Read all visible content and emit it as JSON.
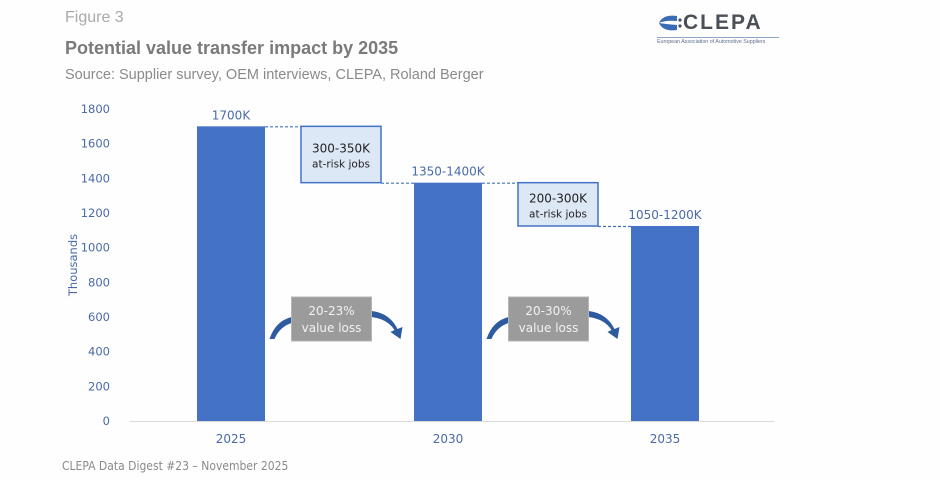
{
  "header": {
    "figure_label": "Figure 3",
    "title": "Potential value transfer impact by 2035",
    "source": "Source: Supplier survey, OEM interviews, CLEPA, Roland Berger"
  },
  "logo": {
    "name": "CLEPA",
    "tagline": "European Association of Automotive Suppliers",
    "icon": "clepa-swoosh-icon"
  },
  "footer": "CLEPA Data Digest #23 – November 2025",
  "colors": {
    "bar": "#4472c4",
    "axis_text": "#4a6aa8",
    "callout_fill": "#dde8f6",
    "callout_border": "#4472c4",
    "loss_box_fill": "#9b9b9b",
    "arrow": "#2e5aa0"
  },
  "chart_data": {
    "type": "bar",
    "title": "Potential value transfer impact by 2035",
    "xlabel": "",
    "ylabel": "Thousands",
    "categories": [
      "2025",
      "2030",
      "2035"
    ],
    "values": [
      1700,
      1375,
      1125
    ],
    "value_ranges": [
      [
        1700,
        1700
      ],
      [
        1350,
        1400
      ],
      [
        1050,
        1200
      ]
    ],
    "data_labels": [
      "1700K",
      "1350-1400K",
      "1050-1200K"
    ],
    "ylim": [
      0,
      1800
    ],
    "yticks": [
      0,
      200,
      400,
      600,
      800,
      1000,
      1200,
      1400,
      1600,
      1800
    ],
    "grid": false,
    "legend": "none",
    "annotations": {
      "at_risk": [
        {
          "between": [
            "2025",
            "2030"
          ],
          "line1": "300-350K",
          "line2": "at-risk jobs"
        },
        {
          "between": [
            "2030",
            "2035"
          ],
          "line1": "200-300K",
          "line2": "at-risk jobs"
        }
      ],
      "value_loss": [
        {
          "between": [
            "2025",
            "2030"
          ],
          "line1": "20-23%",
          "line2": "value loss"
        },
        {
          "between": [
            "2030",
            "2035"
          ],
          "line1": "20-30%",
          "line2": "value loss"
        }
      ]
    }
  }
}
